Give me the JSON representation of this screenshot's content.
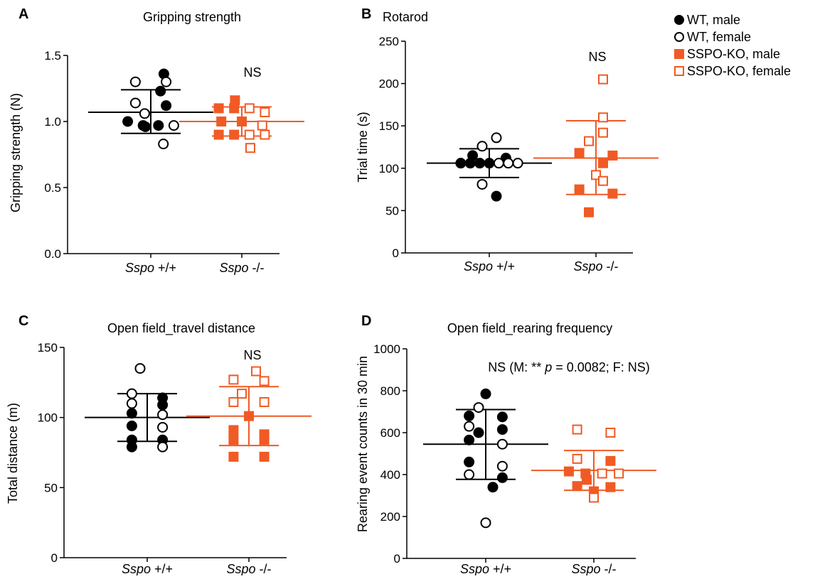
{
  "legend": {
    "items": [
      {
        "label": "WT, male",
        "shape": "circle",
        "filled": true,
        "color": "#000000"
      },
      {
        "label": "WT, female",
        "shape": "circle",
        "filled": false,
        "color": "#000000"
      },
      {
        "label": "SSPO-KO, male",
        "shape": "square",
        "filled": true,
        "color": "#f15a24"
      },
      {
        "label": "SSPO-KO, female",
        "shape": "square",
        "filled": false,
        "color": "#f15a24"
      }
    ]
  },
  "colors": {
    "wt": "#000000",
    "ko": "#f15a24"
  },
  "chart_data": [
    {
      "type": "scatter",
      "panel": "A",
      "title": "Gripping strength",
      "ylabel": "Gripping strength (N)",
      "categories": [
        "Sspo +/+",
        "Sspo -/-"
      ],
      "ylim": [
        0,
        1.5
      ],
      "yticks": [
        "0.0",
        "0.5",
        "1.0",
        "1.5"
      ],
      "annotation": "NS",
      "groups": [
        {
          "category": "Sspo +/+",
          "mean": 1.07,
          "sd_upper": 1.24,
          "sd_lower": 0.91,
          "male": [
            1.36,
            1.23,
            1.12,
            1.0,
            0.97,
            0.97,
            0.96
          ],
          "female": [
            1.3,
            1.3,
            1.14,
            1.06,
            0.97,
            0.83
          ]
        },
        {
          "category": "Sspo -/-",
          "mean": 1.0,
          "sd_upper": 1.11,
          "sd_lower": 0.89,
          "male": [
            1.16,
            1.1,
            1.1,
            1.0,
            1.0,
            0.9,
            0.9
          ],
          "female": [
            1.1,
            1.07,
            0.97,
            0.9,
            0.9,
            0.8
          ]
        }
      ]
    },
    {
      "type": "scatter",
      "panel": "B",
      "title": "Rotarod",
      "ylabel": "Trial time (s)",
      "categories": [
        "Sspo +/+",
        "Sspo -/-"
      ],
      "ylim": [
        0,
        250
      ],
      "yticks": [
        "0",
        "50",
        "100",
        "150",
        "200",
        "250"
      ],
      "annotation": "NS",
      "groups": [
        {
          "category": "Sspo +/+",
          "mean": 106,
          "sd_upper": 123,
          "sd_lower": 89,
          "male": [
            112,
            115,
            106,
            106,
            106,
            106,
            67
          ],
          "female": [
            136,
            126,
            106,
            106,
            106,
            81
          ]
        },
        {
          "category": "Sspo -/-",
          "mean": 112,
          "sd_upper": 156,
          "sd_lower": 69,
          "male": [
            118,
            115,
            106,
            75,
            70,
            48
          ],
          "female": [
            205,
            160,
            142,
            132,
            92,
            85
          ]
        }
      ]
    },
    {
      "type": "scatter",
      "panel": "C",
      "title": "Open field_travel distance",
      "ylabel": "Total distance (m)",
      "categories": [
        "Sspo +/+",
        "Sspo -/-"
      ],
      "ylim": [
        0,
        150
      ],
      "yticks": [
        "0",
        "50",
        "100",
        "150"
      ],
      "annotation": "NS",
      "groups": [
        {
          "category": "Sspo +/+",
          "mean": 100,
          "sd_upper": 117,
          "sd_lower": 83,
          "male": [
            114,
            109,
            103,
            94,
            84,
            84,
            79
          ],
          "female": [
            135,
            117,
            110,
            102,
            93,
            79
          ]
        },
        {
          "category": "Sspo -/-",
          "mean": 101,
          "sd_upper": 122,
          "sd_lower": 80,
          "male": [
            101,
            91,
            88,
            84,
            84,
            72,
            72
          ],
          "female": [
            133,
            127,
            126,
            117,
            111,
            111
          ]
        }
      ]
    },
    {
      "type": "scatter",
      "panel": "D",
      "title": "Open field_rearing frequency",
      "ylabel": "Rearing event counts in 30 min",
      "categories": [
        "Sspo +/+",
        "Sspo -/-"
      ],
      "ylim": [
        0,
        1000
      ],
      "yticks": [
        "0",
        "200",
        "400",
        "600",
        "800",
        "1000"
      ],
      "annotation_parts": [
        "NS (M: ** ",
        "p",
        " = 0.0082; F: NS)"
      ],
      "groups": [
        {
          "category": "Sspo +/+",
          "mean": 545,
          "sd_upper": 710,
          "sd_lower": 377,
          "male": [
            785,
            680,
            675,
            615,
            600,
            565,
            460,
            385,
            340
          ],
          "female": [
            720,
            630,
            545,
            440,
            400,
            170
          ]
        },
        {
          "category": "Sspo -/-",
          "mean": 420,
          "sd_upper": 515,
          "sd_lower": 325,
          "male": [
            465,
            415,
            405,
            375,
            345,
            340,
            320
          ],
          "female": [
            615,
            600,
            475,
            405,
            405,
            290
          ]
        }
      ]
    }
  ]
}
